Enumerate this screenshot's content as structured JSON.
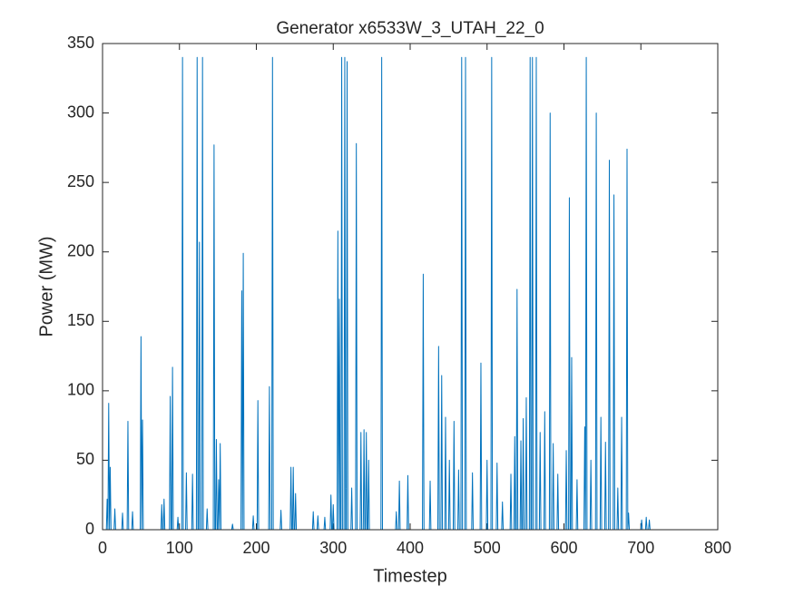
{
  "chart_data": {
    "type": "line",
    "title": "Generator x6533W_3_UTAH_22_0",
    "xlabel": "Timestep",
    "ylabel": "Power (MW)",
    "color": "#0072bd",
    "xlim": [
      0,
      800
    ],
    "xticks": [
      0,
      100,
      200,
      300,
      400,
      500,
      600,
      700,
      800
    ],
    "ylim": [
      0,
      350
    ],
    "yticks": [
      0,
      50,
      100,
      150,
      200,
      250,
      300,
      350
    ],
    "grid": false,
    "x": [
      0,
      5,
      6,
      7,
      8,
      9,
      10,
      11,
      15,
      16,
      17,
      25,
      26,
      27,
      32,
      33,
      34,
      38,
      39,
      40,
      49,
      50,
      51,
      52,
      53,
      76,
      77,
      78,
      79,
      80,
      81,
      87,
      88,
      89,
      90,
      91,
      92,
      97,
      98,
      99,
      103,
      104,
      105,
      108,
      109,
      110,
      116,
      117,
      118,
      122,
      123,
      124,
      125,
      126,
      127,
      129,
      130,
      131,
      135,
      136,
      137,
      144,
      145,
      146,
      147,
      148,
      149,
      150,
      151,
      152,
      153,
      154,
      168,
      169,
      170,
      180,
      181,
      182,
      183,
      184,
      195,
      196,
      197,
      201,
      202,
      203,
      216,
      217,
      218,
      220,
      221,
      222,
      231,
      232,
      233,
      244,
      245,
      246,
      247,
      248,
      249,
      250,
      251,
      252,
      273,
      274,
      275,
      279,
      280,
      281,
      288,
      289,
      290,
      296,
      297,
      298,
      299,
      300,
      301,
      305,
      306,
      307,
      308,
      309,
      310,
      311,
      312,
      314,
      315,
      316,
      317,
      318,
      319,
      323,
      324,
      325,
      329,
      330,
      331,
      335,
      336,
      337,
      339,
      340,
      341,
      342,
      343,
      344,
      345,
      346,
      347,
      362,
      363,
      364,
      381,
      382,
      383,
      385,
      386,
      387,
      396,
      397,
      398,
      416,
      417,
      418,
      425,
      426,
      427,
      436,
      437,
      438,
      440,
      441,
      442,
      445,
      446,
      447,
      450,
      451,
      452,
      456,
      457,
      458,
      462,
      463,
      464,
      466,
      467,
      468,
      471,
      472,
      473,
      480,
      481,
      482,
      491,
      492,
      493,
      499,
      500,
      501,
      505,
      506,
      507,
      512,
      513,
      514,
      519,
      520,
      521,
      530,
      531,
      532,
      535,
      536,
      537,
      538,
      539,
      540,
      543,
      544,
      545,
      546,
      547,
      548,
      550,
      551,
      552,
      555,
      556,
      557,
      558,
      559,
      560,
      563,
      564,
      565,
      568,
      569,
      570,
      574,
      575,
      576,
      581,
      582,
      583,
      585,
      586,
      587,
      591,
      592,
      593,
      602,
      603,
      604,
      606,
      607,
      608,
      609,
      610,
      611,
      616,
      617,
      618,
      626,
      627,
      628,
      629,
      630,
      634,
      635,
      636,
      641,
      642,
      643,
      647,
      648,
      649,
      653,
      654,
      655,
      658,
      659,
      660,
      664,
      665,
      666,
      669,
      670,
      671,
      674,
      675,
      676,
      681,
      682,
      683,
      684,
      685,
      700,
      701,
      702,
      706,
      707,
      708,
      710,
      711,
      712,
      790
    ],
    "values": [
      0,
      0,
      22,
      0,
      91,
      0,
      45,
      0,
      0,
      15,
      0,
      0,
      12,
      0,
      0,
      78,
      0,
      0,
      13,
      0,
      0,
      139,
      0,
      79,
      0,
      0,
      18,
      0,
      0,
      22,
      0,
      0,
      96,
      0,
      0,
      117,
      0,
      0,
      9,
      0,
      0,
      340,
      0,
      0,
      41,
      0,
      0,
      40,
      0,
      0,
      340,
      0,
      0,
      207,
      0,
      0,
      340,
      0,
      0,
      15,
      0,
      0,
      277,
      0,
      0,
      65,
      0,
      0,
      36,
      0,
      62,
      0,
      0,
      4,
      0,
      0,
      172,
      0,
      199,
      0,
      0,
      10,
      0,
      0,
      93,
      0,
      0,
      103,
      0,
      0,
      340,
      0,
      0,
      14,
      0,
      0,
      45,
      0,
      0,
      45,
      0,
      0,
      26,
      0,
      0,
      13,
      0,
      0,
      10,
      0,
      0,
      9,
      0,
      0,
      25,
      0,
      0,
      18,
      0,
      0,
      215,
      0,
      166,
      0,
      0,
      340,
      0,
      0,
      340,
      0,
      0,
      337,
      0,
      0,
      30,
      0,
      0,
      278,
      0,
      0,
      70,
      0,
      0,
      72,
      0,
      0,
      70,
      0,
      0,
      50,
      0,
      0,
      340,
      0,
      0,
      13,
      0,
      0,
      35,
      0,
      0,
      39,
      0,
      0,
      184,
      0,
      0,
      35,
      0,
      0,
      132,
      0,
      0,
      111,
      0,
      0,
      81,
      0,
      0,
      50,
      0,
      0,
      78,
      0,
      0,
      43,
      0,
      0,
      340,
      0,
      0,
      340,
      0,
      0,
      41,
      0,
      0,
      120,
      0,
      0,
      50,
      0,
      0,
      340,
      0,
      0,
      48,
      0,
      0,
      20,
      0,
      0,
      40,
      0,
      0,
      67,
      0,
      0,
      173,
      0,
      0,
      64,
      0,
      0,
      80,
      0,
      0,
      95,
      0,
      0,
      340,
      0,
      0,
      340,
      0,
      0,
      340,
      0,
      0,
      70,
      0,
      0,
      85,
      0,
      0,
      300,
      0,
      0,
      62,
      0,
      0,
      40,
      0,
      0,
      57,
      0,
      0,
      239,
      0,
      0,
      124,
      0,
      0,
      36,
      0,
      0,
      74,
      0,
      340,
      0,
      0,
      50,
      0,
      0,
      300,
      0,
      0,
      81,
      0,
      0,
      63,
      0,
      0,
      266,
      0,
      0,
      241,
      0,
      0,
      30,
      0,
      0,
      81,
      0,
      0,
      274,
      0,
      12,
      0,
      0,
      7,
      0,
      0,
      9,
      0,
      0,
      7,
      0,
      0
    ]
  }
}
